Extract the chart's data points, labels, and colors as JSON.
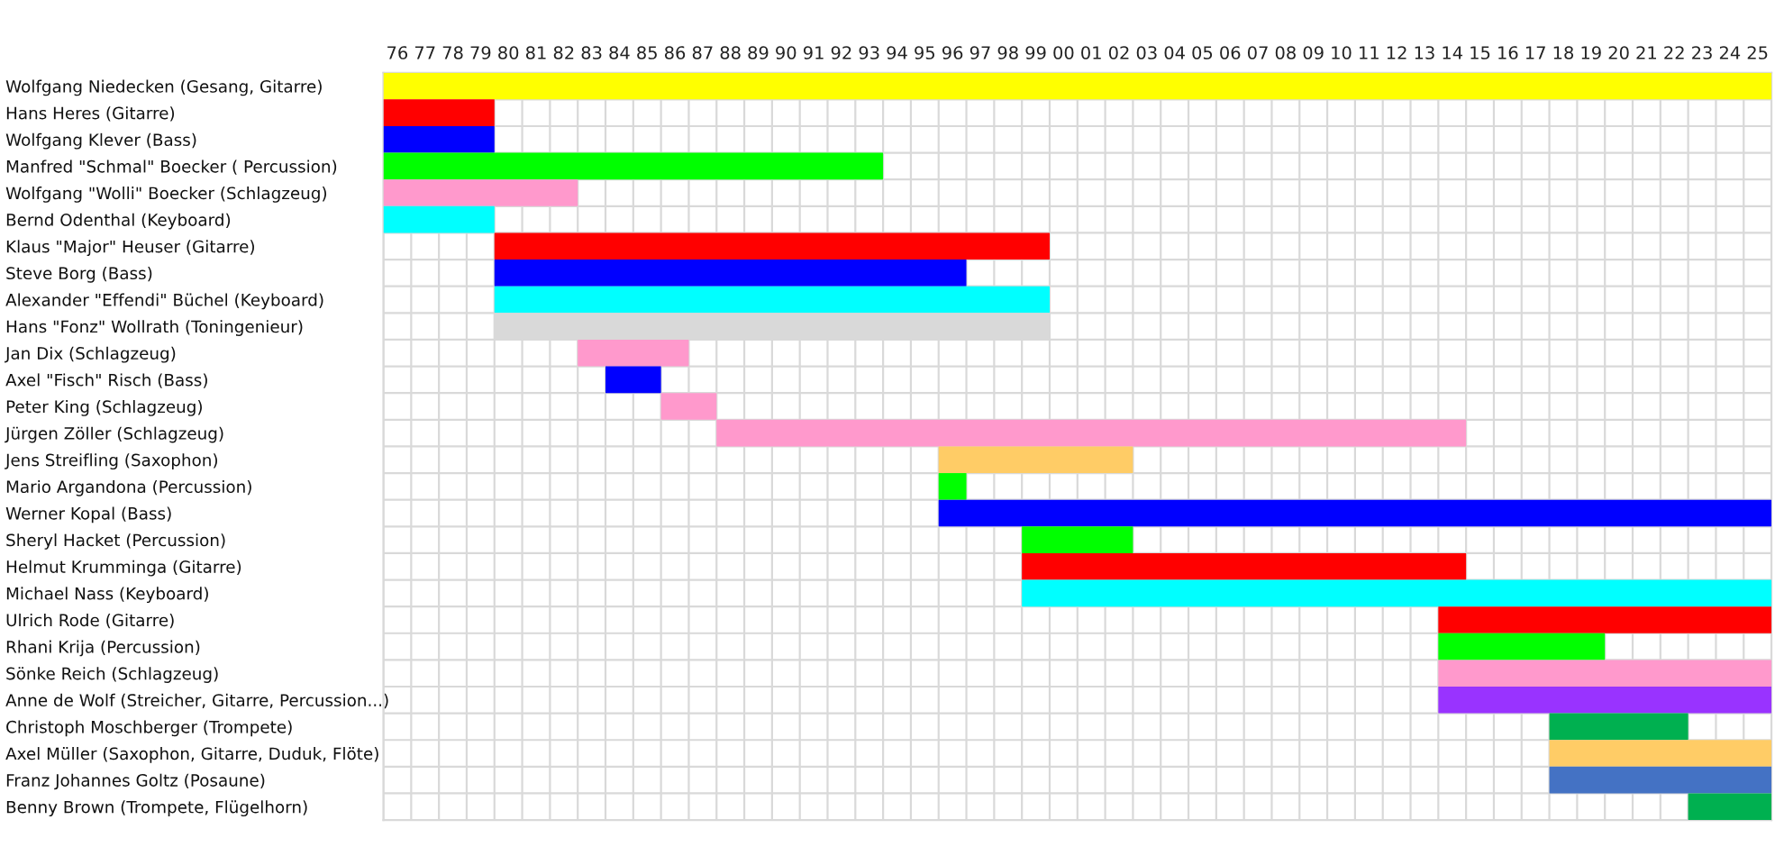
{
  "chart_data": {
    "type": "bar",
    "orientation": "horizontal",
    "categories": [
      "Wolfgang Niedecken (Gesang, Gitarre)",
      "Hans Heres (Gitarre)",
      "Wolfgang Klever (Bass)",
      "Manfred \"Schmal\" Boecker ( Percussion)",
      "Wolfgang \"Wolli\" Boecker (Schlagzeug)",
      "Bernd Odenthal (Keyboard)",
      "Klaus \"Major\" Heuser (Gitarre)",
      "Steve Borg (Bass)",
      "Alexander \"Effendi\" Büchel (Keyboard)",
      "Hans \"Fonz\" Wollrath (Toningenieur)",
      "Jan Dix (Schlagzeug)",
      "Axel \"Fisch\" Risch (Bass)",
      "Peter King (Schlagzeug)",
      "Jürgen Zöller (Schlagzeug)",
      "Jens Streifling (Saxophon)",
      "Mario Argandona (Percussion)",
      "Werner Kopal (Bass)",
      "Sheryl Hacket (Percussion)",
      "Helmut Krumminga (Gitarre)",
      "Michael Nass (Keyboard)",
      "Ulrich Rode (Gitarre)",
      "Rhani Krija (Percussion)",
      "Sönke Reich (Schlagzeug)",
      "Anne de Wolf (Streicher, Gitarre, Percussion...)",
      "Christoph Moschberger (Trompete)",
      "Axel Müller (Saxophon, Gitarre, Duduk, Flöte)",
      "Franz Johannes Goltz (Posaune)",
      "Benny Brown (Trompete, Flügelhorn)"
    ],
    "base": [
      1975.5,
      1975.5,
      1975.5,
      1975.5,
      1975.5,
      1975.5,
      1979.5,
      1979.5,
      1979.5,
      1979.5,
      1982.5,
      1983.5,
      1985.5,
      1987.5,
      1995.5,
      1995.5,
      1995.5,
      1998.5,
      1998.5,
      1998.5,
      2013.5,
      2013.5,
      2013.5,
      2013.5,
      2017.5,
      2017.5,
      2017.5,
      2022.5
    ],
    "values": [
      50,
      4,
      4,
      18,
      7,
      4,
      20,
      17,
      20,
      20,
      4,
      2,
      2,
      27,
      7,
      1,
      30,
      4,
      16,
      27,
      12,
      6,
      12,
      12,
      5,
      8,
      8,
      3
    ],
    "colors": [
      "#ffff00",
      "#ff0000",
      "#0000ff",
      "#00ff00",
      "#ff99cc",
      "#00ffff",
      "#ff0000",
      "#0000ff",
      "#00ffff",
      "#d9d9d9",
      "#ff99cc",
      "#0000ff",
      "#ff99cc",
      "#ff99cc",
      "#ffcc66",
      "#00ff00",
      "#0000ff",
      "#00ff00",
      "#ff0000",
      "#00ffff",
      "#ff0000",
      "#00ff00",
      "#ff99cc",
      "#9933ff",
      "#00b050",
      "#ffcc66",
      "#4472c4",
      "#00b050"
    ],
    "xlim": [
      1975.5,
      2025.5
    ],
    "xticks": [
      {
        "value": 1976,
        "label": "76"
      },
      {
        "value": 1977,
        "label": "77"
      },
      {
        "value": 1978,
        "label": "78"
      },
      {
        "value": 1979,
        "label": "79"
      },
      {
        "value": 1980,
        "label": "80"
      },
      {
        "value": 1981,
        "label": "81"
      },
      {
        "value": 1982,
        "label": "82"
      },
      {
        "value": 1983,
        "label": "83"
      },
      {
        "value": 1984,
        "label": "84"
      },
      {
        "value": 1985,
        "label": "85"
      },
      {
        "value": 1986,
        "label": "86"
      },
      {
        "value": 1987,
        "label": "87"
      },
      {
        "value": 1988,
        "label": "88"
      },
      {
        "value": 1989,
        "label": "89"
      },
      {
        "value": 1990,
        "label": "90"
      },
      {
        "value": 1991,
        "label": "91"
      },
      {
        "value": 1992,
        "label": "92"
      },
      {
        "value": 1993,
        "label": "93"
      },
      {
        "value": 1994,
        "label": "94"
      },
      {
        "value": 1995,
        "label": "95"
      },
      {
        "value": 1996,
        "label": "96"
      },
      {
        "value": 1997,
        "label": "97"
      },
      {
        "value": 1998,
        "label": "98"
      },
      {
        "value": 1999,
        "label": "99"
      },
      {
        "value": 2000,
        "label": "00"
      },
      {
        "value": 2001,
        "label": "01"
      },
      {
        "value": 2002,
        "label": "02"
      },
      {
        "value": 2003,
        "label": "03"
      },
      {
        "value": 2004,
        "label": "04"
      },
      {
        "value": 2005,
        "label": "05"
      },
      {
        "value": 2006,
        "label": "06"
      },
      {
        "value": 2007,
        "label": "07"
      },
      {
        "value": 2008,
        "label": "08"
      },
      {
        "value": 2009,
        "label": "09"
      },
      {
        "value": 2010,
        "label": "10"
      },
      {
        "value": 2011,
        "label": "11"
      },
      {
        "value": 2012,
        "label": "12"
      },
      {
        "value": 2013,
        "label": "13"
      },
      {
        "value": 2014,
        "label": "14"
      },
      {
        "value": 2015,
        "label": "15"
      },
      {
        "value": 2016,
        "label": "16"
      },
      {
        "value": 2017,
        "label": "17"
      },
      {
        "value": 2018,
        "label": "18"
      },
      {
        "value": 2019,
        "label": "19"
      },
      {
        "value": 2020,
        "label": "20"
      },
      {
        "value": 2021,
        "label": "21"
      },
      {
        "value": 2022,
        "label": "22"
      },
      {
        "value": 2023,
        "label": "23"
      },
      {
        "value": 2024,
        "label": "24"
      },
      {
        "value": 2025,
        "label": "25"
      }
    ],
    "grid": true
  }
}
